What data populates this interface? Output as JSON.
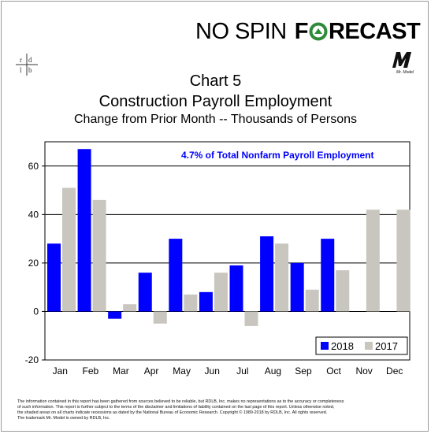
{
  "header": {
    "brand_prefix": "NO SPIN",
    "brand_f": "F",
    "brand_rest": "RECAST",
    "rdlb_logo_text": "rdlb",
    "mr_model_logo_text": "Mr. Model"
  },
  "colors": {
    "series_2018": "#0000ff",
    "series_2017": "#c8c6bf",
    "annotation": "#0000ff",
    "brand_green": "#2e8b3a"
  },
  "chart_data": {
    "type": "bar",
    "title": "Chart 5",
    "subtitle": "Construction Payroll Employment",
    "subtitle2": "Change from Prior Month -- Thousands of Persons",
    "annotation": "4.7% of Total Nonfarm Payroll Employment",
    "categories": [
      "Jan",
      "Feb",
      "Mar",
      "Apr",
      "May",
      "Jun",
      "Jul",
      "Aug",
      "Sep",
      "Oct",
      "Nov",
      "Dec"
    ],
    "series": [
      {
        "name": "2018",
        "values": [
          28,
          67,
          -3,
          16,
          30,
          8,
          19,
          31,
          20,
          30,
          null,
          null
        ]
      },
      {
        "name": "2017",
        "values": [
          51,
          46,
          3,
          -5,
          7,
          16,
          -6,
          28,
          9,
          17,
          42,
          42
        ]
      }
    ],
    "ylim": [
      -20,
      70
    ],
    "yticks": [
      -20,
      0,
      20,
      40,
      60
    ],
    "grid": true,
    "legend_position": "bottom-right",
    "xlabel": "",
    "ylabel": ""
  },
  "footer": {
    "lines": [
      "The information contained in this report has been gathered from sources believed to be reliable, but RDLB, Inc. makes no representations as to the accuracy or completeness",
      "of such information. This report is further subject to the terms of the disclaimer and limitations of liability contained on the last page of this report. Unless otherwise noted,",
      "the shaded areas on all charts indicate recessions as dated by the National Bureau of Economic Research. Copyright © 1989-2018 by RDLB, Inc. All rights reserved.",
      "The trademark Mr. Model is owned by RDLB, Inc."
    ]
  }
}
